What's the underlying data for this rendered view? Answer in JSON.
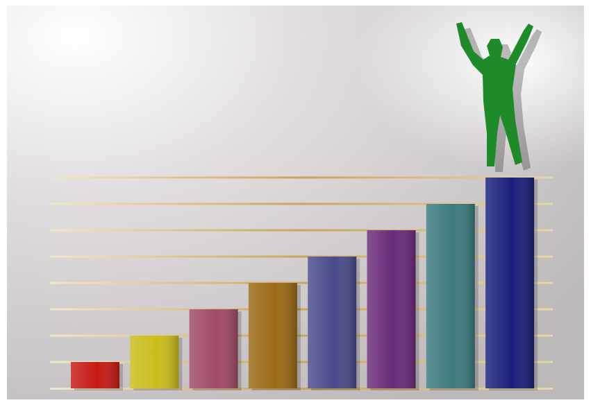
{
  "chart_data": {
    "type": "bar",
    "title": "",
    "xlabel": "",
    "ylabel": "",
    "ylim": [
      0,
      8
    ],
    "grid": true,
    "legend": "none",
    "values": [
      1,
      2,
      3,
      4,
      5,
      6,
      7,
      8
    ],
    "bar_colors": [
      "#c81a14",
      "#c9bd1c",
      "#a04a66",
      "#9a6a16",
      "#4a4a8a",
      "#6a2a7a",
      "#3c7a80",
      "#1a1f7a"
    ],
    "bar_color_names": [
      "red",
      "yellow",
      "rose",
      "golden-brown",
      "slate-blue",
      "purple",
      "teal",
      "navy"
    ],
    "figure": {
      "color": "#1f8a2a",
      "description_icon": "celebrating-person-icon"
    },
    "background_color": "#d9d4d6",
    "gridline_color": "#c9a45a"
  }
}
